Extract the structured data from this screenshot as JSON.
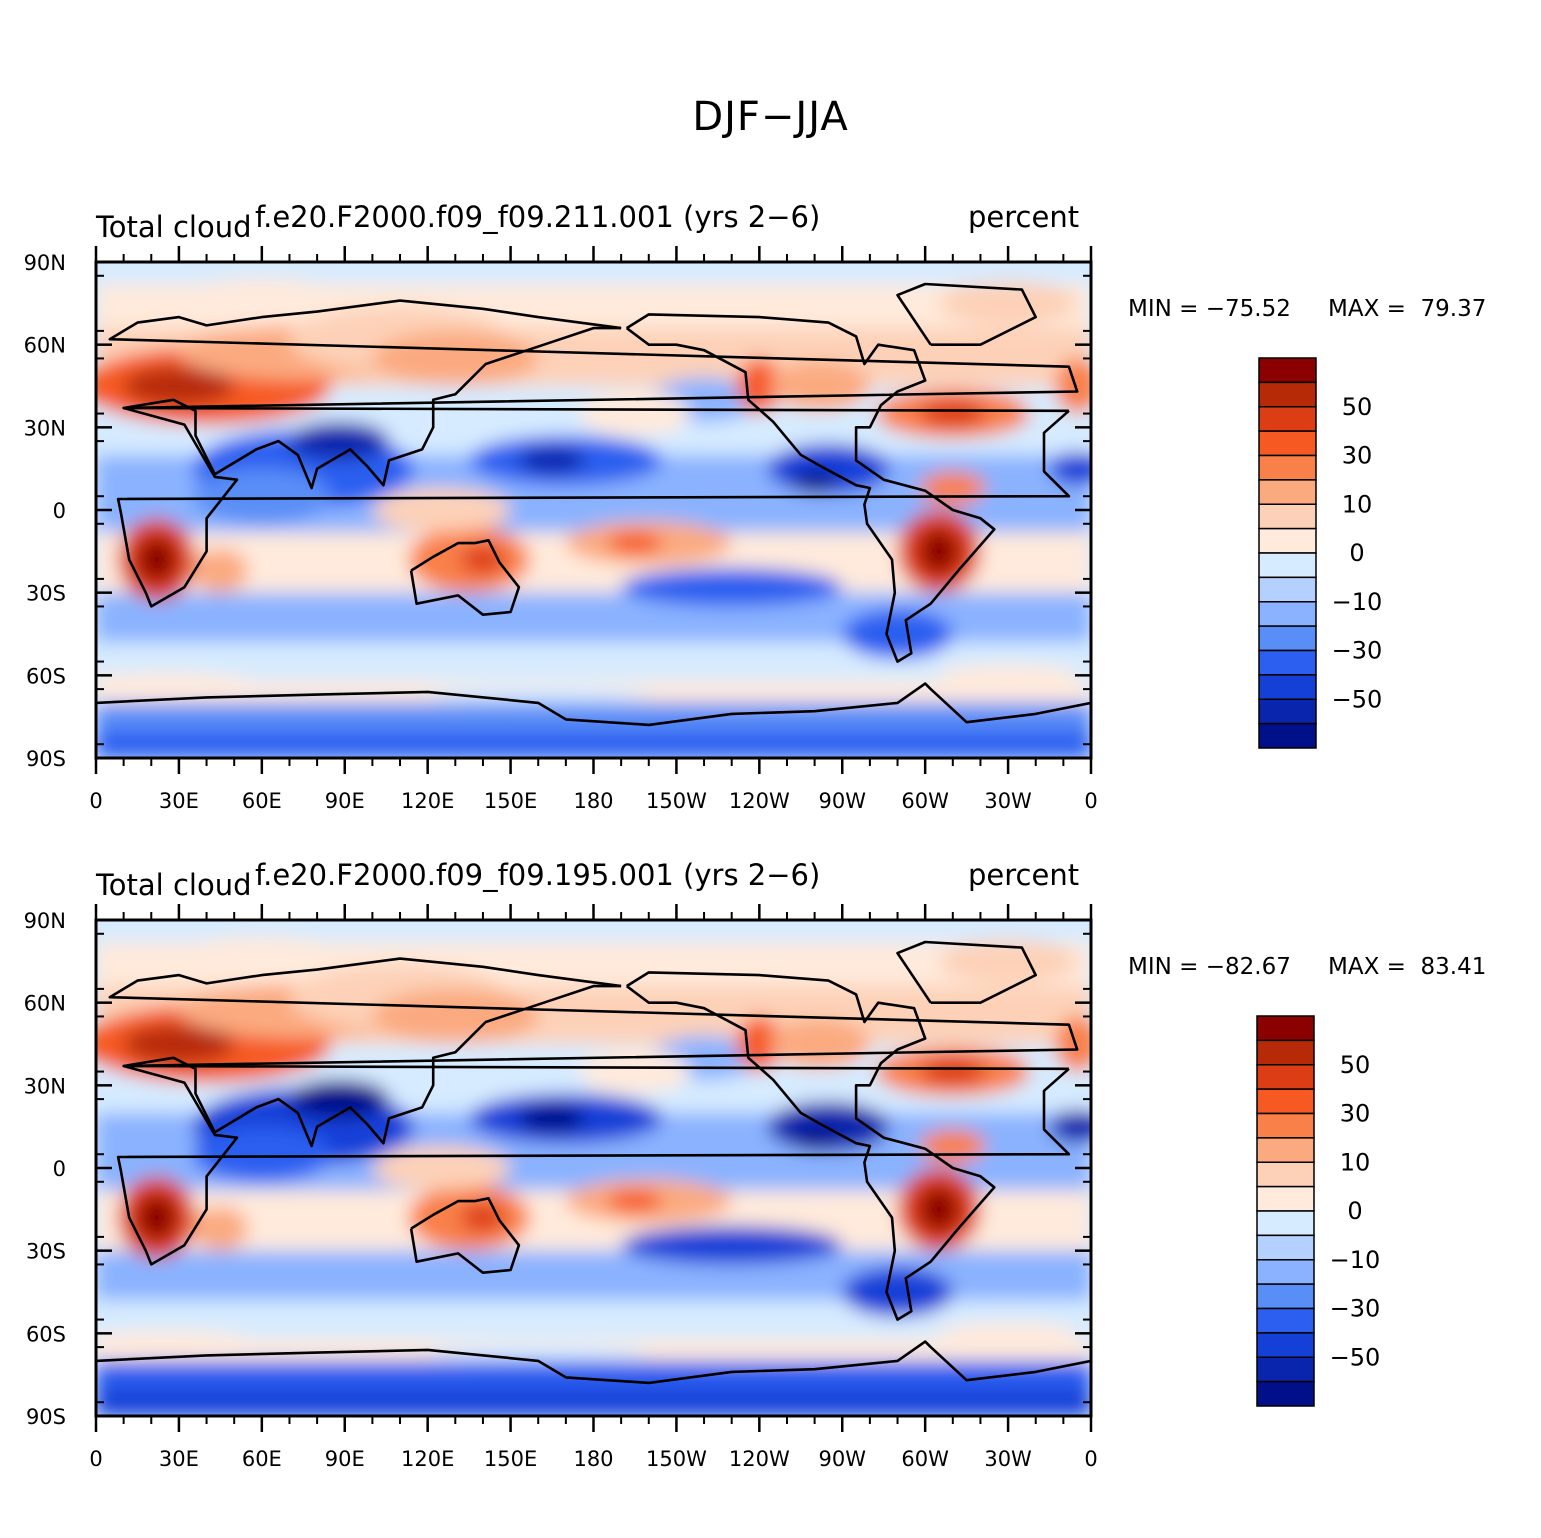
{
  "title": "DJF−JJA",
  "panels": [
    {
      "left_title": "Total cloud",
      "center_title": "f.e20.F2000.f09_f09.211.001 (yrs 2−6)",
      "right_title": "percent",
      "min_label": "MIN = −75.52",
      "max_label": "MAX =  79.37",
      "min": -75.52,
      "max": 79.37
    },
    {
      "left_title": "Total cloud",
      "center_title": "f.e20.F2000.f09_f09.195.001 (yrs 2−6)",
      "right_title": "percent",
      "min_label": "MIN = −82.67",
      "max_label": "MAX =  83.41",
      "min": -82.67,
      "max": 83.41
    }
  ],
  "lat_ticks": [
    "90N",
    "60N",
    "30N",
    "0",
    "30S",
    "60S",
    "90S"
  ],
  "lon_ticks": [
    "0",
    "30E",
    "60E",
    "90E",
    "120E",
    "150E",
    "180",
    "150W",
    "120W",
    "90W",
    "60W",
    "30W",
    "0"
  ],
  "colorbar": {
    "labels": [
      "50",
      "30",
      "10",
      "0",
      "−10",
      "−30",
      "−50"
    ],
    "colors": [
      "#8b0000",
      "#b72a08",
      "#dd3d14",
      "#f65a22",
      "#f98048",
      "#fbaa80",
      "#fdd1b7",
      "#ffeadb",
      "#d6ebff",
      "#b3d0ff",
      "#8ab2ff",
      "#5a8ef7",
      "#2c5ff0",
      "#1440d8",
      "#0a25ad",
      "#00108a"
    ]
  }
}
